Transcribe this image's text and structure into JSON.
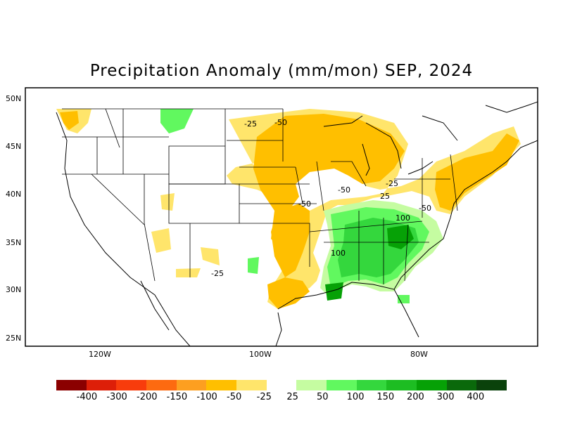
{
  "title": "Precipitation Anomaly (mm/mon) SEP, 2024",
  "lat_labels": [
    "50N",
    "45N",
    "40N",
    "35N",
    "30N",
    "25N"
  ],
  "lon_labels": [
    "120W",
    "100W",
    "80W"
  ],
  "contour_labels": [
    "-25",
    "-50",
    "-50",
    "-50",
    "-25",
    "25",
    "-50",
    "100",
    "100",
    "-25"
  ],
  "legend": {
    "colors": [
      "#8b0000",
      "#dd1f08",
      "#f83c0c",
      "#fd6a10",
      "#fd9f20",
      "#ffbf00",
      "#ffe56b",
      "#ffffff",
      "#c5fca1",
      "#61f85f",
      "#34d73d",
      "#1dbd22",
      "#06a106",
      "#0a690b",
      "#0a420b"
    ],
    "labels": [
      "-400",
      "-300",
      "-200",
      "-150",
      "-100",
      "-50",
      "-25",
      "25",
      "50",
      "100",
      "150",
      "200",
      "300",
      "400"
    ]
  },
  "map": {
    "frame_color": "#000000",
    "land_color": "#ffffff",
    "dry_color": "#ffbf00",
    "wet_color": "#34d73d"
  }
}
